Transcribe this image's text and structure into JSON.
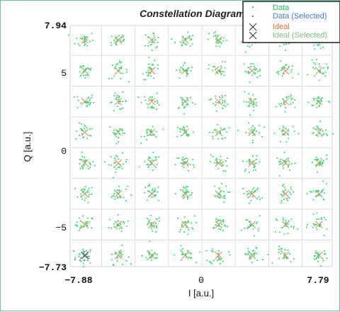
{
  "chart_data": {
    "type": "scatter",
    "title": "Constellation Diagram",
    "xlabel": "I [a.u.]",
    "ylabel": "Q [a.u.]",
    "xlim": [
      -7.88,
      7.79
    ],
    "ylim": [
      -7.73,
      7.94
    ],
    "x_ticks": [
      -7.88,
      0,
      7.79
    ],
    "x_tick_labels": [
      "−7.88",
      "0",
      "7.79"
    ],
    "y_ticks": [
      7.94,
      5,
      0,
      -5,
      -7.73
    ],
    "y_tick_labels": [
      "7.94",
      "5",
      "0",
      "−5",
      "−7.73"
    ],
    "grid": true,
    "legend_position": "top-right",
    "ideal_levels": [
      -7,
      -5,
      -3,
      -1,
      1,
      3,
      5,
      7
    ],
    "series": [
      {
        "name": "Data",
        "marker": "dot",
        "color": "#22dd66",
        "points": "scattered around each ideal 64-QAM point"
      },
      {
        "name": "Data (Selected)",
        "marker": "dot",
        "color": "#3f7fbf"
      },
      {
        "name": "Ideal",
        "marker": "x",
        "color": "#e8804a"
      },
      {
        "name": "Ideal (Selected)",
        "marker": "x",
        "color": "#555555"
      }
    ]
  }
}
